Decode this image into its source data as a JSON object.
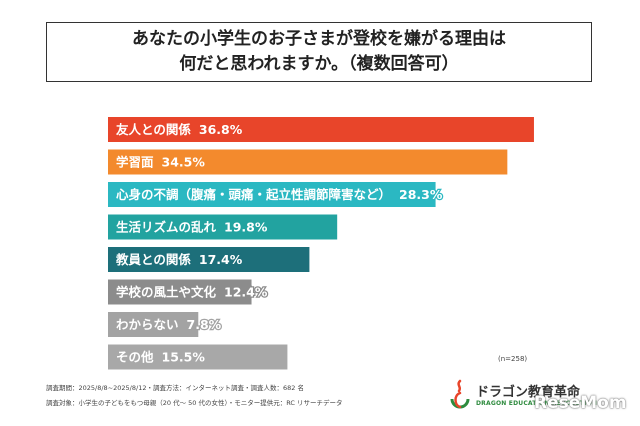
{
  "title": {
    "line1": "あなたの小学生のお子さまが登校を嫌がる理由は",
    "line2": "何だと思われますか。（複数回答可）"
  },
  "chart_data": {
    "type": "bar",
    "orientation": "horizontal",
    "categories": [
      "友人との関係",
      "学習面",
      "心身の不調（腹痛・頭痛・起立性調節障害など）",
      "生活リズムの乱れ",
      "教員との関係",
      "学校の風土や文化",
      "わからない",
      "その他"
    ],
    "values": [
      36.8,
      34.5,
      28.3,
      19.8,
      17.4,
      12.4,
      7.8,
      15.5
    ],
    "value_labels": [
      "36.8%",
      "34.5%",
      "28.3%",
      "19.8%",
      "17.4%",
      "12.4%",
      "7.8%",
      "15.5%"
    ],
    "colors": [
      "#e8452a",
      "#f38a2d",
      "#2bb8c2",
      "#22a3a0",
      "#1d6f7a",
      "#8c8c8c",
      "#a3a3a3",
      "#a8a8a8"
    ],
    "xlim": [
      0,
      40
    ]
  },
  "note": "(n=258)",
  "footer": {
    "line1": "調査期間：2025/8/8~2025/8/12・調査方法：インターネット調査・調査人数：682 名",
    "line2": "調査対象：小学生の子どもをもつ母親（20 代〜 50 代の女性）・モニター提供元：RC リサーチデータ"
  },
  "logo": {
    "name": "ドラゴン教育革命",
    "tagline": "DRAGON EDUCATION REVOLUTION",
    "icon": "dragon-logo-icon"
  },
  "watermark": "ReseMom"
}
